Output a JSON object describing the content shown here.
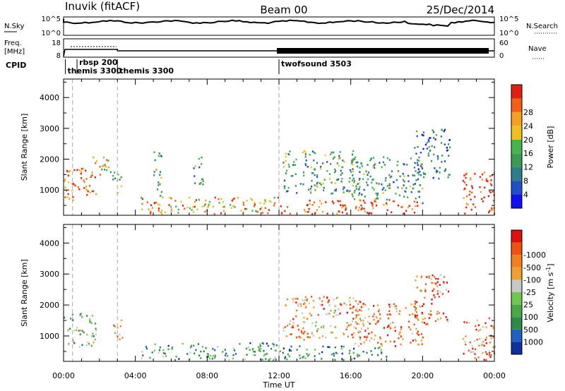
{
  "header": {
    "station": "Inuvik (fitACF)",
    "beam": "Beam 00",
    "date": "25/Dec/2014"
  },
  "noise_panel": {
    "left_label": "N.Sky",
    "right_label": "N.Search",
    "left_ticks": [
      "10^5",
      "10^0"
    ],
    "right_ticks": [
      "10^5",
      "10^0"
    ]
  },
  "freq_panel": {
    "left_label": "Freq.",
    "left_unit": "[MHz]",
    "right_label": "Nave",
    "left_ticks": [
      "18",
      "8"
    ],
    "right_ticks": [
      "60",
      "0"
    ]
  },
  "cpid": {
    "label": "CPID",
    "programs": [
      {
        "name": "rbsp 200",
        "start_hr": 0.75
      },
      {
        "name": "themis 3300",
        "start_hr": 0.1
      },
      {
        "name": "themis 3300",
        "start_hr": 3.0
      },
      {
        "name": "twofsound 3503",
        "start_hr": 12.0
      }
    ]
  },
  "x_axis": {
    "label": "Time UT",
    "ticks": [
      "00:00",
      "04:00",
      "08:00",
      "12:00",
      "16:00",
      "20:00",
      "00:00"
    ]
  },
  "chart_data": [
    {
      "type": "heatmap",
      "title": "",
      "quantity": "Power",
      "ylabel": "Slant Range [km]",
      "y_ticks": [
        1000,
        2000,
        3000,
        4000
      ],
      "ylim": [
        180,
        4600
      ],
      "xlim_hr": [
        0,
        24
      ],
      "colorbar": {
        "label": "Power [dB]",
        "labels": [
          "4",
          "8",
          "12",
          "16",
          "20",
          "24",
          "28"
        ],
        "colors": [
          "#1010f0",
          "#2050c8",
          "#2e7d8c",
          "#3d9a55",
          "#46b54a",
          "#f0c020",
          "#f5a020",
          "#f06018",
          "#e02010"
        ]
      },
      "scatter_regions": [
        {
          "t0": 0.0,
          "t1": 1.8,
          "r0": 650,
          "r1": 1750,
          "level": 0.8
        },
        {
          "t0": 1.5,
          "t1": 2.7,
          "r0": 1500,
          "r1": 2100,
          "level": 0.6
        },
        {
          "t0": 2.7,
          "t1": 3.3,
          "r0": 900,
          "r1": 1600,
          "level": 0.5
        },
        {
          "t0": 4.2,
          "t1": 12.0,
          "r0": 250,
          "r1": 800,
          "level": 0.7
        },
        {
          "t0": 5.0,
          "t1": 5.5,
          "r0": 800,
          "r1": 2300,
          "level": 0.4
        },
        {
          "t0": 7.2,
          "t1": 7.8,
          "r0": 1200,
          "r1": 2200,
          "level": 0.4
        },
        {
          "t0": 12.0,
          "t1": 20.0,
          "r0": 250,
          "r1": 700,
          "level": 0.9
        },
        {
          "t0": 12.2,
          "t1": 16.5,
          "r0": 900,
          "r1": 2300,
          "level": 0.4
        },
        {
          "t0": 16.0,
          "t1": 20.0,
          "r0": 700,
          "r1": 2100,
          "level": 0.35
        },
        {
          "t0": 19.5,
          "t1": 21.5,
          "r0": 1400,
          "r1": 3000,
          "level": 0.3
        },
        {
          "t0": 22.2,
          "t1": 24.0,
          "r0": 250,
          "r1": 1600,
          "level": 0.95
        }
      ]
    },
    {
      "type": "heatmap",
      "title": "",
      "quantity": "Velocity",
      "ylabel": "Slant Range [km]",
      "y_ticks": [
        1000,
        2000,
        3000,
        4000
      ],
      "ylim": [
        180,
        4600
      ],
      "xlim_hr": [
        0,
        24
      ],
      "colorbar": {
        "label": "Velocity [m s",
        "label_sup": "-1",
        "label_end": "]",
        "labels": [
          "1000",
          "500",
          "100",
          "25",
          "-25",
          "-100",
          "-500",
          "-1000"
        ],
        "colors": [
          "#1030a0",
          "#2060c0",
          "#2e8a4a",
          "#4aa84a",
          "#70c850",
          "#c8c8c8",
          "#f0a030",
          "#f08020",
          "#f05010",
          "#e01010"
        ]
      },
      "scatter_regions": [
        {
          "t0": 0.0,
          "t1": 1.8,
          "r0": 650,
          "r1": 1750,
          "level": 0.4
        },
        {
          "t0": 2.7,
          "t1": 3.3,
          "r0": 900,
          "r1": 1600,
          "level": 0.6
        },
        {
          "t0": 4.2,
          "t1": 12.0,
          "r0": 250,
          "r1": 800,
          "level": 0.3
        },
        {
          "t0": 12.0,
          "t1": 18.0,
          "r0": 250,
          "r1": 700,
          "level": 0.25
        },
        {
          "t0": 12.2,
          "t1": 16.5,
          "r0": 900,
          "r1": 2300,
          "level": 0.7
        },
        {
          "t0": 16.0,
          "t1": 20.0,
          "r0": 700,
          "r1": 2100,
          "level": 0.75
        },
        {
          "t0": 19.5,
          "t1": 21.5,
          "r0": 1400,
          "r1": 3000,
          "level": 0.8
        },
        {
          "t0": 22.2,
          "t1": 24.0,
          "r0": 250,
          "r1": 1600,
          "level": 0.8
        }
      ]
    }
  ]
}
